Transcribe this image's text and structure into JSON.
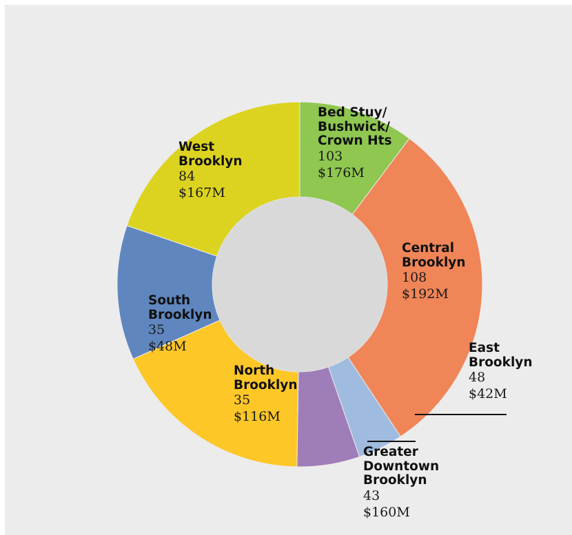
{
  "colors": {
    "background": "#ececec",
    "center": "#d9d9d9",
    "leader": "#111111"
  },
  "chart_data": {
    "type": "donut",
    "title": "",
    "series_fields": [
      "count",
      "amount"
    ],
    "segments": [
      {
        "key": "bedstuy",
        "name_lines": [
          "Bed Stuy/",
          "Bushwick/",
          "Crown Hts"
        ],
        "count": "103",
        "amount": "$176M",
        "color": "#8fc750",
        "share": 0.1025
      },
      {
        "key": "central",
        "name_lines": [
          "Central",
          "Brooklyn"
        ],
        "count": "108",
        "amount": "$192M",
        "color": "#f08558",
        "share": 0.3045
      },
      {
        "key": "east",
        "name_lines": [
          "East",
          "Brooklyn"
        ],
        "count": "48",
        "amount": "$42M",
        "color": "#9fbbe0",
        "share": 0.04
      },
      {
        "key": "downtown",
        "name_lines": [
          "Greater",
          "Downtown",
          "Brooklyn"
        ],
        "count": "43",
        "amount": "$160M",
        "color": "#9f7db9",
        "share": 0.0555
      },
      {
        "key": "north",
        "name_lines": [
          "North",
          "Brooklyn"
        ],
        "count": "35",
        "amount": "$116M",
        "color": "#fdc728",
        "share": 0.1805
      },
      {
        "key": "south",
        "name_lines": [
          "South",
          "Brooklyn"
        ],
        "count": "35",
        "amount": "$48M",
        "color": "#5f86bf",
        "share": 0.1192
      },
      {
        "key": "west",
        "name_lines": [
          "West",
          "Brooklyn"
        ],
        "count": "84",
        "amount": "$167M",
        "color": "#dcd321",
        "share": 0.1978
      }
    ]
  },
  "labels": {
    "bedstuy": {
      "name": [
        "Bed Stuy/",
        "Bushwick/",
        "Crown Hts"
      ],
      "count": "103",
      "amount": "$176M"
    },
    "central": {
      "name": [
        "Central",
        "Brooklyn"
      ],
      "count": "108",
      "amount": "$192M"
    },
    "east": {
      "name": [
        "East",
        "Brooklyn"
      ],
      "count": "48",
      "amount": "$42M"
    },
    "downtown": {
      "name": [
        "Greater",
        "Downtown",
        "Brooklyn"
      ],
      "count": "43",
      "amount": "$160M"
    },
    "north": {
      "name": [
        "North",
        "Brooklyn"
      ],
      "count": "35",
      "amount": "$116M"
    },
    "south": {
      "name": [
        "South",
        "Brooklyn"
      ],
      "count": "35",
      "amount": "$48M"
    },
    "west": {
      "name": [
        "West",
        "Brooklyn"
      ],
      "count": "84",
      "amount": "$167M"
    }
  }
}
